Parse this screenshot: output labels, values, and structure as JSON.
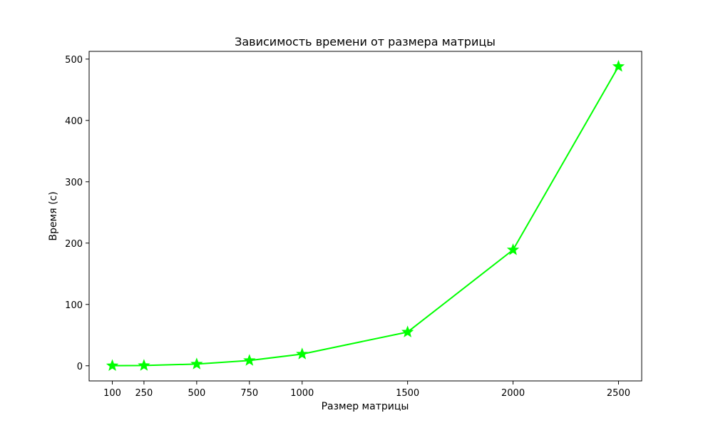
{
  "chart_data": {
    "type": "line",
    "title": "Зависимость времени от размера матрицы",
    "xlabel": "Размер матрицы",
    "ylabel": "Время (с)",
    "x": [
      100,
      250,
      500,
      750,
      1000,
      1500,
      2000,
      2500
    ],
    "x_tick_labels": [
      "100",
      "250",
      "500",
      "750",
      "1000",
      "1500",
      "2000",
      "2500"
    ],
    "y_ticks": [
      0,
      100,
      200,
      300,
      400,
      500
    ],
    "y_tick_labels": [
      "0",
      "100",
      "200",
      "300",
      "400",
      "500"
    ],
    "xlim": [
      -10,
      2610
    ],
    "ylim": [
      -24.7,
      512.6
    ],
    "grid": false,
    "series": [
      {
        "values": [
          0.1,
          0.4,
          2.8,
          8.6,
          19.1,
          55.0,
          189.0,
          488.0
        ],
        "color": "#00ff00",
        "marker": "star"
      }
    ]
  }
}
